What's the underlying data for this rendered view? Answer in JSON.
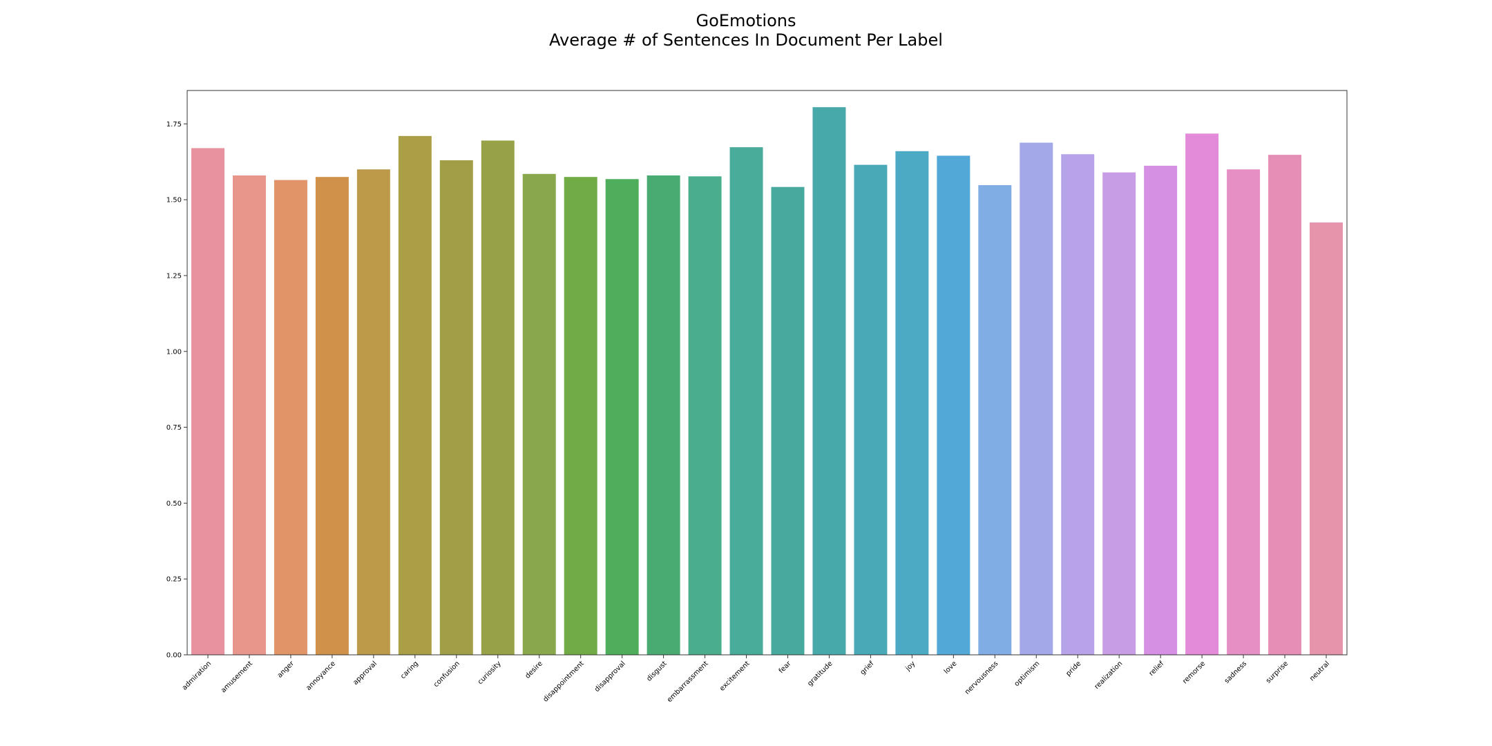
{
  "chart_data": {
    "type": "bar",
    "title": "GoEmotions",
    "subtitle": "Average # of Sentences In Document Per Label",
    "xlabel": "",
    "ylabel": "",
    "ylim": [
      0,
      1.86
    ],
    "yticks": [
      "0.00",
      "0.25",
      "0.50",
      "0.75",
      "1.00",
      "1.25",
      "1.50",
      "1.75"
    ],
    "grid": false,
    "categories": [
      "admiration",
      "amusement",
      "anger",
      "annoyance",
      "approval",
      "caring",
      "confusion",
      "curiosity",
      "desire",
      "disappointment",
      "disapproval",
      "disgust",
      "embarrassment",
      "excitement",
      "fear",
      "gratitude",
      "grief",
      "joy",
      "love",
      "nervousness",
      "optimism",
      "pride",
      "realization",
      "relief",
      "remorse",
      "sadness",
      "surprise",
      "neutral"
    ],
    "values": [
      1.67,
      1.58,
      1.565,
      1.575,
      1.6,
      1.71,
      1.63,
      1.695,
      1.585,
      1.575,
      1.568,
      1.58,
      1.577,
      1.673,
      1.542,
      1.805,
      1.615,
      1.66,
      1.645,
      1.548,
      1.688,
      1.65,
      1.59,
      1.612,
      1.718,
      1.6,
      1.648,
      1.425
    ],
    "colors": [
      "#e8919f",
      "#e8968c",
      "#e29469",
      "#d0924b",
      "#bc9a4a",
      "#aa9e47",
      "#a29e47",
      "#97a147",
      "#89a74b",
      "#70ab46",
      "#4eae5b",
      "#4aab72",
      "#4aad8e",
      "#49ab99",
      "#48a99f",
      "#47a9aa",
      "#4aa9b6",
      "#4caac4",
      "#52a8d6",
      "#80aee4",
      "#a2a8e8",
      "#b7a4e8",
      "#c79ee6",
      "#d58fe3",
      "#e38ad9",
      "#e68fc4",
      "#e68fb6",
      "#e594ab"
    ]
  }
}
